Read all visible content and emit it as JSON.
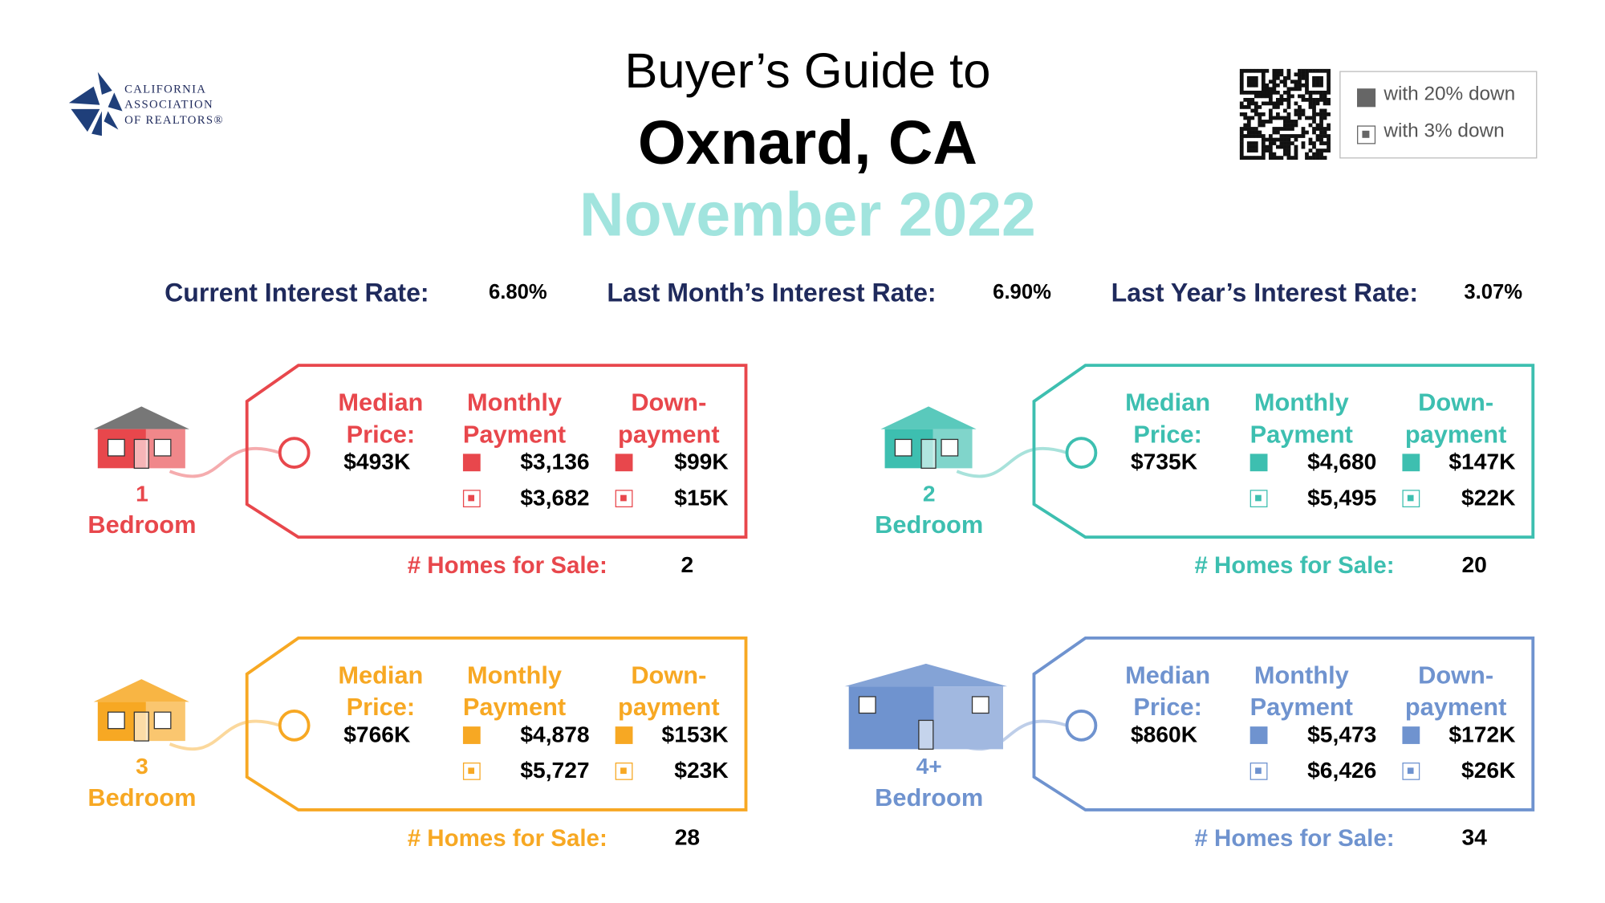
{
  "header": {
    "logo": [
      "CALIFORNIA",
      "ASSOCIATION",
      "OF REALTORS®"
    ],
    "title": "Buyer’s Guide to",
    "city": "Oxnard, CA",
    "date": "November 2022"
  },
  "legend": [
    "with 20% down",
    "with 3% down"
  ],
  "rates": [
    {
      "label": "Current Interest Rate:",
      "value": "6.80%"
    },
    {
      "label": "Last Month’s Interest Rate:",
      "value": "6.90%"
    },
    {
      "label": "Last Year’s Interest Rate:",
      "value": "3.07%"
    }
  ],
  "cards": [
    {
      "bedrooms": "1",
      "bedroom_label": "Bedroom",
      "color": "#e8474c",
      "columns": [
        "Median Price:",
        "Monthly Payment",
        "Down-payment"
      ],
      "median_price": "$493K",
      "monthly_payment": [
        "$3,136",
        "$3,682"
      ],
      "down_payment": [
        "$99K",
        "$15K"
      ],
      "homes_label": "# Homes for Sale:",
      "homes_for_sale": 2
    },
    {
      "bedrooms": "2",
      "bedroom_label": "Bedroom",
      "color": "#3dbfb0",
      "columns": [
        "Median Price:",
        "Monthly Payment",
        "Down-payment"
      ],
      "median_price": "$735K",
      "monthly_payment": [
        "$4,680",
        "$5,495"
      ],
      "down_payment": [
        "$147K",
        "$22K"
      ],
      "homes_label": "# Homes for Sale:",
      "homes_for_sale": 20
    },
    {
      "bedrooms": "3",
      "bedroom_label": "Bedroom",
      "color": "#f7a823",
      "columns": [
        "Median Price:",
        "Monthly Payment",
        "Down-payment"
      ],
      "median_price": "$766K",
      "monthly_payment": [
        "$4,878",
        "$5,727"
      ],
      "down_payment": [
        "$153K",
        "$23K"
      ],
      "homes_label": "# Homes for Sale:",
      "homes_for_sale": 28
    },
    {
      "bedrooms": "4+",
      "bedroom_label": "Bedroom",
      "color": "#6f93cf",
      "columns": [
        "Median Price:",
        "Monthly Payment",
        "Down-payment"
      ],
      "median_price": "$860K",
      "monthly_payment": [
        "$5,473",
        "$6,426"
      ],
      "down_payment": [
        "$172K",
        "$26K"
      ],
      "homes_label": "# Homes for Sale:",
      "homes_for_sale": 34
    }
  ]
}
